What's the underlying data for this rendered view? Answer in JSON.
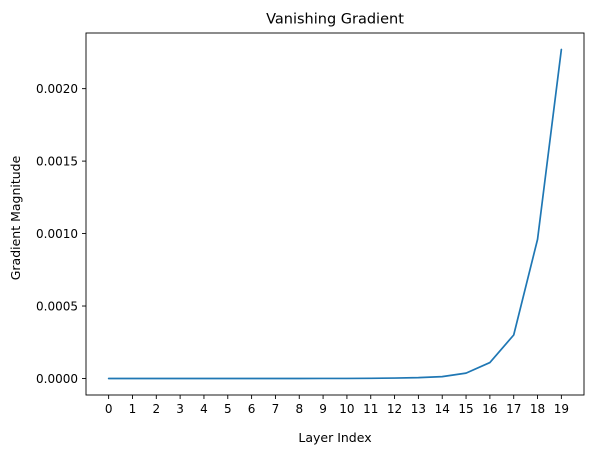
{
  "chart_data": {
    "type": "line",
    "title": "Vanishing Gradient",
    "xlabel": "Layer Index",
    "ylabel": "Gradient Magnitude",
    "x": [
      0,
      1,
      2,
      3,
      4,
      5,
      6,
      7,
      8,
      9,
      10,
      11,
      12,
      13,
      14,
      15,
      16,
      17,
      18,
      19
    ],
    "series": [
      {
        "values": [
          0.0,
          0.0,
          0.0,
          0.0,
          0.0,
          0.0,
          0.0,
          0.0,
          1e-07,
          2e-07,
          4e-07,
          1e-06,
          3e-06,
          6e-06,
          1.3e-05,
          3.7e-05,
          0.00011,
          0.0003,
          0.00096,
          0.00227
        ],
        "color": "#1f77b4"
      }
    ],
    "xticks": [
      "0",
      "1",
      "2",
      "3",
      "4",
      "5",
      "6",
      "7",
      "8",
      "9",
      "10",
      "11",
      "12",
      "13",
      "14",
      "15",
      "16",
      "17",
      "18",
      "19"
    ],
    "yticks": [
      0.0,
      0.0005,
      0.001,
      0.0015,
      0.002
    ],
    "ytick_labels": [
      "0.0000",
      "0.0005",
      "0.0010",
      "0.0015",
      "0.0020"
    ],
    "xlim": [
      -0.95,
      19.95
    ],
    "ylim": [
      -0.000114,
      0.002384
    ],
    "grid": false,
    "legend": "none"
  }
}
